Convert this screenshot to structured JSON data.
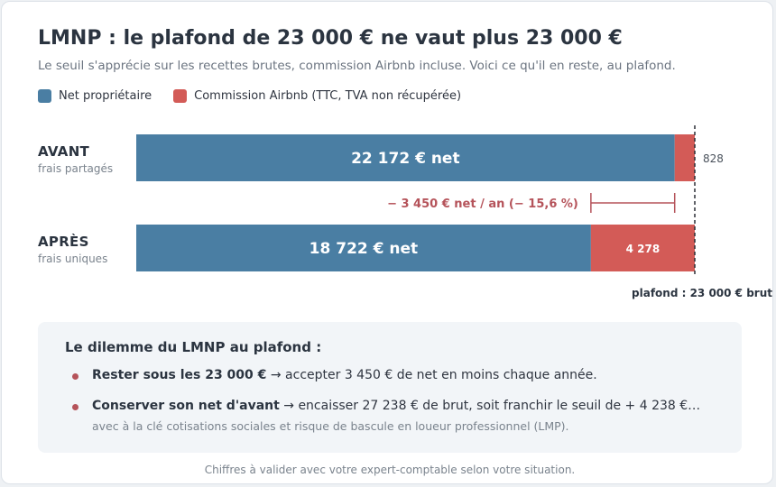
{
  "title": "LMNP : le plafond de 23 000 € ne vaut plus 23 000 €",
  "subtitle": "Le seuil s'apprécie sur les recettes brutes, commission Airbnb incluse. Voici ce qu'il en reste, au plafond.",
  "legend": [
    {
      "label": "Net propriétaire",
      "color": "#4a7ea3"
    },
    {
      "label": "Commission Airbnb (TTC, TVA non récupérée)",
      "color": "#d35b57"
    }
  ],
  "chart_data": {
    "type": "bar",
    "orientation": "horizontal",
    "stacked": true,
    "categories": [
      "AVANT",
      "APRÈS"
    ],
    "category_sublabels": [
      "frais partagés",
      "frais uniques"
    ],
    "series": [
      {
        "name": "Net propriétaire",
        "values": [
          22172,
          18722
        ],
        "color": "#4a7ea3"
      },
      {
        "name": "Commission Airbnb (TTC, TVA non récupérée)",
        "values": [
          828,
          4278
        ],
        "color": "#d35b57"
      }
    ],
    "bar_labels": {
      "net": [
        "22 172 € net",
        "18 722 € net"
      ],
      "commission": [
        "828",
        "4 278"
      ]
    },
    "xlim": [
      0,
      23000
    ],
    "threshold": {
      "value": 23000,
      "label": "plafond : 23 000 € brut"
    },
    "difference": {
      "from": 22172,
      "to": 18722,
      "label": "− 3 450 € net / an (− 15,6 %)"
    }
  },
  "callout": {
    "title": "Le dilemme du LMNP au plafond :",
    "bullets": [
      {
        "bold": "Rester sous les 23 000 €",
        "text": " → accepter 3 450 € de net en moins chaque année."
      },
      {
        "bold": "Conserver son net d'avant",
        "text": " → encaisser 27 238 € de brut, soit franchir le seuil de + 4 238 €…",
        "note": "avec à la clé cotisations sociales et risque de bascule en loueur professionnel (LMP)."
      }
    ]
  },
  "footer": "Chiffres à valider avec votre expert-comptable selon votre situation."
}
